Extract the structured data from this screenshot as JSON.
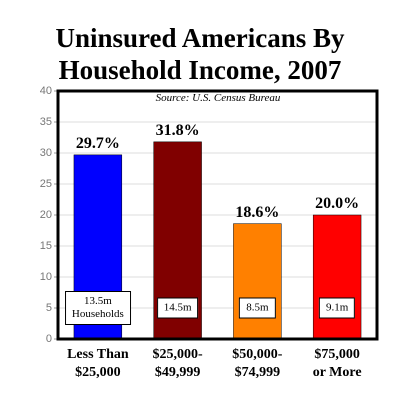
{
  "chart_data": {
    "type": "bar",
    "title": "Uninsured Americans By\nHousehold Income, 2007",
    "subtitle": "Source: U.S. Census Bureau",
    "categories": [
      "Less Than\n$25,000",
      "$25,000-\n$49,999",
      "$50,000-\n$74,999",
      "$75,000\nor More"
    ],
    "values": [
      29.7,
      31.8,
      18.6,
      20.0
    ],
    "value_labels": [
      "29.7%",
      "31.8%",
      "18.6%",
      "20.0%"
    ],
    "colors": [
      "#0000ff",
      "#800000",
      "#ff8000",
      "#ff0000"
    ],
    "annotations": [
      "13.5m\nHouseholds",
      "14.5m",
      "8.5m",
      "9.1m"
    ],
    "ylim": [
      0,
      40
    ],
    "yticks": [
      0,
      5,
      10,
      15,
      20,
      25,
      30,
      35,
      40
    ],
    "grid": true
  }
}
